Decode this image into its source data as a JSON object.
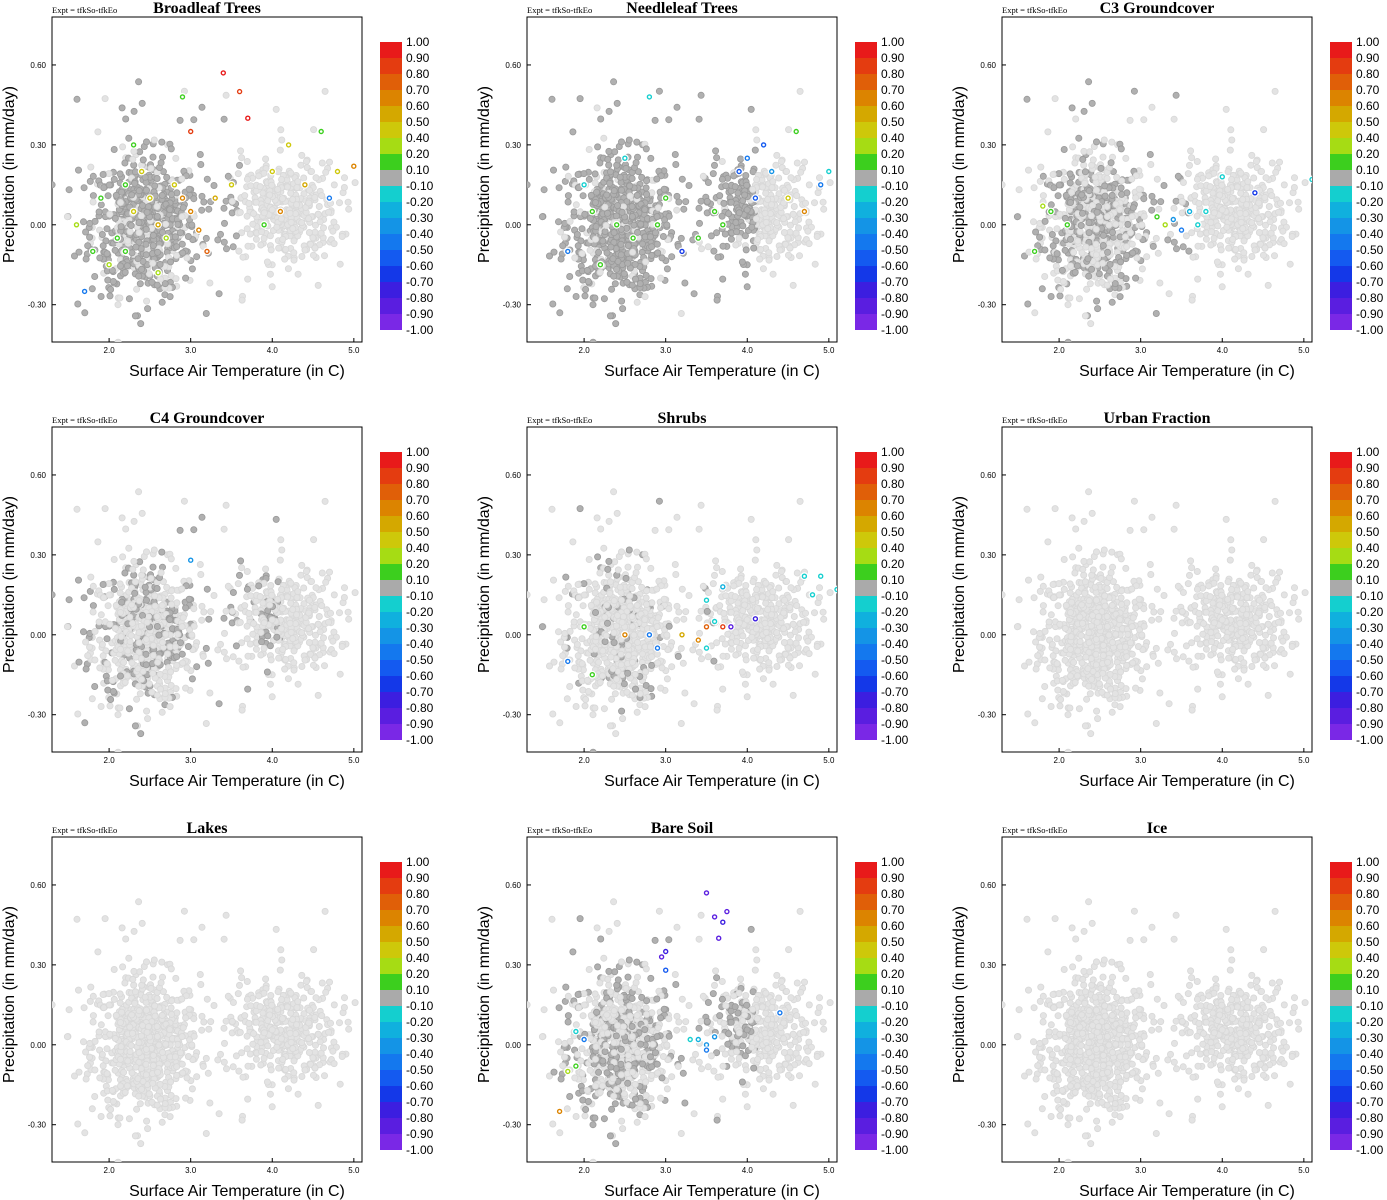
{
  "figure": {
    "expt_label": "Expt = tfkSo-tfkEo",
    "point_colors": {
      "background": "#e3e3e3",
      "low_correlation": "#b0b0b0",
      "outline": "#999999"
    }
  },
  "colorbar": {
    "labels": [
      "1.00",
      "0.90",
      "0.80",
      "0.70",
      "0.60",
      "0.50",
      "0.40",
      "0.20",
      "0.10",
      "-0.10",
      "-0.20",
      "-0.30",
      "-0.40",
      "-0.50",
      "-0.60",
      "-0.70",
      "-0.80",
      "-0.90",
      "-1.00"
    ],
    "colors": [
      "#e81a1a",
      "#e43c10",
      "#e05f08",
      "#dc8400",
      "#d4a800",
      "#cec80a",
      "#a6dc14",
      "#3ccf1e",
      "#aaaaaa",
      "#14cfcf",
      "#10b0de",
      "#1494e6",
      "#1478ee",
      "#145af0",
      "#1438e8",
      "#3c1ee0",
      "#5a1ee0",
      "#7a28e6"
    ],
    "levels": [
      0.95,
      0.85,
      0.75,
      0.65,
      0.55,
      0.45,
      0.3,
      0.15,
      0.0,
      -0.15,
      -0.25,
      -0.35,
      -0.45,
      -0.55,
      -0.65,
      -0.75,
      -0.85,
      -0.95
    ]
  },
  "chart_data": [
    {
      "type": "scatter",
      "title": "Broadleaf Trees",
      "xlabel": "Surface Air Temperature (in C)",
      "ylabel": "Precipitation (in mm/day)",
      "xticks": [
        "2.0",
        "3.0",
        "4.0",
        "5.0"
      ],
      "yticks": [
        "0.60",
        "0.30",
        "0.00",
        "-0.30"
      ],
      "xlim": [
        1.3,
        5.1
      ],
      "ylim": [
        -0.44,
        0.78
      ],
      "colored_points": [
        {
          "x": 2.2,
          "y": 0.15,
          "c": 0.15
        },
        {
          "x": 2.3,
          "y": 0.05,
          "c": 0.4
        },
        {
          "x": 2.5,
          "y": 0.1,
          "c": 0.45
        },
        {
          "x": 2.1,
          "y": -0.05,
          "c": 0.15
        },
        {
          "x": 2.6,
          "y": 0.0,
          "c": 0.55
        },
        {
          "x": 2.9,
          "y": 0.1,
          "c": 0.6
        },
        {
          "x": 3.0,
          "y": 0.05,
          "c": 0.65
        },
        {
          "x": 3.1,
          "y": -0.02,
          "c": 0.6
        },
        {
          "x": 2.4,
          "y": 0.2,
          "c": 0.45
        },
        {
          "x": 2.8,
          "y": 0.15,
          "c": 0.45
        },
        {
          "x": 1.9,
          "y": 0.1,
          "c": 0.15
        },
        {
          "x": 2.0,
          "y": -0.15,
          "c": 0.3
        },
        {
          "x": 1.8,
          "y": -0.1,
          "c": 0.15
        },
        {
          "x": 2.7,
          "y": -0.05,
          "c": 0.3
        },
        {
          "x": 3.3,
          "y": 0.1,
          "c": 0.55
        },
        {
          "x": 3.5,
          "y": 0.15,
          "c": 0.4
        },
        {
          "x": 3.4,
          "y": 0.57,
          "c": 0.95
        },
        {
          "x": 3.6,
          "y": 0.5,
          "c": 0.85
        },
        {
          "x": 3.7,
          "y": 0.4,
          "c": 0.95
        },
        {
          "x": 3.0,
          "y": 0.35,
          "c": 0.85
        },
        {
          "x": 4.0,
          "y": 0.2,
          "c": 0.45
        },
        {
          "x": 4.2,
          "y": 0.3,
          "c": 0.45
        },
        {
          "x": 4.4,
          "y": 0.15,
          "c": 0.55
        },
        {
          "x": 4.6,
          "y": 0.35,
          "c": 0.15
        },
        {
          "x": 4.8,
          "y": 0.2,
          "c": 0.45
        },
        {
          "x": 5.0,
          "y": 0.22,
          "c": 0.65
        },
        {
          "x": 4.7,
          "y": 0.1,
          "c": -0.45
        },
        {
          "x": 1.7,
          "y": -0.25,
          "c": -0.45
        },
        {
          "x": 3.2,
          "y": -0.1,
          "c": 0.75
        },
        {
          "x": 2.3,
          "y": 0.3,
          "c": 0.15
        },
        {
          "x": 2.6,
          "y": -0.18,
          "c": 0.3
        },
        {
          "x": 1.6,
          "y": 0.0,
          "c": 0.3
        },
        {
          "x": 2.9,
          "y": 0.48,
          "c": 0.15
        },
        {
          "x": 3.9,
          "y": 0.0,
          "c": 0.15
        },
        {
          "x": 4.1,
          "y": 0.05,
          "c": 0.6
        },
        {
          "x": 2.2,
          "y": -0.1,
          "c": 0.15
        }
      ]
    },
    {
      "type": "scatter",
      "title": "Needleleaf Trees",
      "xlabel": "Surface Air Temperature (in C)",
      "ylabel": "Precipitation (in mm/day)",
      "xticks": [
        "2.0",
        "3.0",
        "4.0",
        "5.0"
      ],
      "yticks": [
        "0.60",
        "0.30",
        "0.00",
        "-0.30"
      ],
      "xlim": [
        1.3,
        5.1
      ],
      "ylim": [
        -0.44,
        0.78
      ],
      "colored_points": [
        {
          "x": 2.1,
          "y": 0.05,
          "c": 0.15
        },
        {
          "x": 2.4,
          "y": 0.0,
          "c": 0.15
        },
        {
          "x": 2.6,
          "y": -0.05,
          "c": 0.15
        },
        {
          "x": 2.9,
          "y": 0.0,
          "c": 0.15
        },
        {
          "x": 3.2,
          "y": -0.1,
          "c": -0.65
        },
        {
          "x": 3.4,
          "y": -0.05,
          "c": 0.15
        },
        {
          "x": 3.9,
          "y": 0.2,
          "c": -0.55
        },
        {
          "x": 4.0,
          "y": 0.25,
          "c": -0.45
        },
        {
          "x": 4.2,
          "y": 0.3,
          "c": -0.55
        },
        {
          "x": 4.3,
          "y": 0.2,
          "c": -0.35
        },
        {
          "x": 4.5,
          "y": 0.1,
          "c": 0.45
        },
        {
          "x": 4.7,
          "y": 0.05,
          "c": 0.6
        },
        {
          "x": 4.9,
          "y": 0.15,
          "c": -0.45
        },
        {
          "x": 5.0,
          "y": 0.2,
          "c": -0.15
        },
        {
          "x": 2.8,
          "y": 0.48,
          "c": -0.15
        },
        {
          "x": 2.0,
          "y": 0.15,
          "c": -0.15
        },
        {
          "x": 1.8,
          "y": -0.1,
          "c": -0.45
        },
        {
          "x": 2.2,
          "y": -0.15,
          "c": 0.15
        },
        {
          "x": 3.6,
          "y": 0.05,
          "c": 0.15
        },
        {
          "x": 4.6,
          "y": 0.35,
          "c": 0.15
        },
        {
          "x": 2.5,
          "y": 0.25,
          "c": -0.15
        },
        {
          "x": 3.0,
          "y": 0.1,
          "c": 0.15
        },
        {
          "x": 3.7,
          "y": 0.0,
          "c": 0.15
        },
        {
          "x": 4.1,
          "y": 0.1,
          "c": -0.55
        }
      ]
    },
    {
      "type": "scatter",
      "title": "C3 Groundcover",
      "xlabel": "Surface Air Temperature (in C)",
      "ylabel": "Precipitation (in mm/day)",
      "xticks": [
        "2.0",
        "3.0",
        "4.0",
        "5.0"
      ],
      "yticks": [
        "0.60",
        "0.30",
        "0.00",
        "-0.30"
      ],
      "xlim": [
        1.3,
        5.1
      ],
      "ylim": [
        -0.44,
        0.78
      ],
      "colored_points": [
        {
          "x": 1.8,
          "y": 0.07,
          "c": 0.3
        },
        {
          "x": 1.9,
          "y": 0.05,
          "c": 0.15
        },
        {
          "x": 2.1,
          "y": 0.0,
          "c": 0.15
        },
        {
          "x": 1.7,
          "y": -0.1,
          "c": 0.15
        },
        {
          "x": 3.2,
          "y": 0.03,
          "c": 0.15
        },
        {
          "x": 3.3,
          "y": 0.0,
          "c": 0.3
        },
        {
          "x": 3.4,
          "y": 0.02,
          "c": -0.35
        },
        {
          "x": 3.5,
          "y": -0.02,
          "c": -0.45
        },
        {
          "x": 3.6,
          "y": 0.05,
          "c": -0.25
        },
        {
          "x": 3.7,
          "y": 0.0,
          "c": -0.15
        },
        {
          "x": 3.8,
          "y": 0.05,
          "c": -0.15
        },
        {
          "x": 4.0,
          "y": 0.18,
          "c": -0.15
        },
        {
          "x": 4.4,
          "y": 0.12,
          "c": -0.65
        },
        {
          "x": 5.1,
          "y": 0.17,
          "c": -0.15
        }
      ]
    },
    {
      "type": "scatter",
      "title": "C4 Groundcover",
      "xlabel": "Surface Air Temperature (in C)",
      "ylabel": "Precipitation (in mm/day)",
      "xticks": [
        "2.0",
        "3.0",
        "4.0",
        "5.0"
      ],
      "yticks": [
        "0.60",
        "0.30",
        "0.00",
        "-0.30"
      ],
      "xlim": [
        1.3,
        5.1
      ],
      "ylim": [
        -0.44,
        0.78
      ],
      "colored_points": [
        {
          "x": 3.0,
          "y": 0.28,
          "c": -0.35
        }
      ]
    },
    {
      "type": "scatter",
      "title": "Shrubs",
      "xlabel": "Surface Air Temperature (in C)",
      "ylabel": "Precipitation (in mm/day)",
      "xticks": [
        "2.0",
        "3.0",
        "4.0",
        "5.0"
      ],
      "yticks": [
        "0.60",
        "0.30",
        "0.00",
        "-0.30"
      ],
      "xlim": [
        1.3,
        5.1
      ],
      "ylim": [
        -0.44,
        0.78
      ],
      "colored_points": [
        {
          "x": 2.0,
          "y": 0.03,
          "c": 0.15
        },
        {
          "x": 2.5,
          "y": 0.0,
          "c": 0.65
        },
        {
          "x": 2.8,
          "y": 0.0,
          "c": -0.45
        },
        {
          "x": 3.2,
          "y": 0.0,
          "c": 0.55
        },
        {
          "x": 3.4,
          "y": -0.02,
          "c": 0.65
        },
        {
          "x": 3.5,
          "y": 0.03,
          "c": 0.75
        },
        {
          "x": 3.6,
          "y": 0.05,
          "c": -0.15
        },
        {
          "x": 3.7,
          "y": 0.03,
          "c": 0.85
        },
        {
          "x": 3.8,
          "y": 0.03,
          "c": -0.85
        },
        {
          "x": 4.1,
          "y": 0.06,
          "c": -0.75
        },
        {
          "x": 3.5,
          "y": -0.05,
          "c": -0.15
        },
        {
          "x": 3.5,
          "y": 0.13,
          "c": -0.15
        },
        {
          "x": 3.7,
          "y": 0.18,
          "c": -0.25
        },
        {
          "x": 4.7,
          "y": 0.22,
          "c": -0.15
        },
        {
          "x": 4.9,
          "y": 0.22,
          "c": -0.15
        },
        {
          "x": 5.1,
          "y": 0.17,
          "c": -0.15
        },
        {
          "x": 2.1,
          "y": -0.15,
          "c": 0.15
        },
        {
          "x": 1.8,
          "y": -0.1,
          "c": -0.45
        },
        {
          "x": 2.9,
          "y": -0.05,
          "c": -0.45
        },
        {
          "x": 4.8,
          "y": 0.15,
          "c": -0.15
        }
      ]
    },
    {
      "type": "scatter",
      "title": "Urban Fraction",
      "xlabel": "Surface Air Temperature (in C)",
      "ylabel": "Precipitation (in mm/day)",
      "xticks": [
        "2.0",
        "3.0",
        "4.0",
        "5.0"
      ],
      "yticks": [
        "0.60",
        "0.30",
        "0.00",
        "-0.30"
      ],
      "xlim": [
        1.3,
        5.1
      ],
      "ylim": [
        -0.44,
        0.78
      ],
      "colored_points": []
    },
    {
      "type": "scatter",
      "title": "Lakes",
      "xlabel": "Surface Air Temperature (in C)",
      "ylabel": "Precipitation (in mm/day)",
      "xticks": [
        "2.0",
        "3.0",
        "4.0",
        "5.0"
      ],
      "yticks": [
        "0.60",
        "0.30",
        "0.00",
        "-0.30"
      ],
      "xlim": [
        1.3,
        5.1
      ],
      "ylim": [
        -0.44,
        0.78
      ],
      "colored_points": []
    },
    {
      "type": "scatter",
      "title": "Bare Soil",
      "xlabel": "Surface Air Temperature (in C)",
      "ylabel": "Precipitation (in mm/day)",
      "xticks": [
        "2.0",
        "3.0",
        "4.0",
        "5.0"
      ],
      "yticks": [
        "0.60",
        "0.30",
        "0.00",
        "-0.30"
      ],
      "xlim": [
        1.3,
        5.1
      ],
      "ylim": [
        -0.44,
        0.78
      ],
      "colored_points": [
        {
          "x": 3.5,
          "y": 0.57,
          "c": -0.85
        },
        {
          "x": 3.6,
          "y": 0.48,
          "c": -0.85
        },
        {
          "x": 3.7,
          "y": 0.46,
          "c": -0.75
        },
        {
          "x": 3.75,
          "y": 0.5,
          "c": -0.85
        },
        {
          "x": 3.65,
          "y": 0.4,
          "c": -0.85
        },
        {
          "x": 3.0,
          "y": 0.35,
          "c": -0.75
        },
        {
          "x": 2.95,
          "y": 0.33,
          "c": -0.85
        },
        {
          "x": 3.0,
          "y": 0.28,
          "c": -0.55
        },
        {
          "x": 4.4,
          "y": 0.12,
          "c": -0.45
        },
        {
          "x": 3.4,
          "y": 0.02,
          "c": -0.25
        },
        {
          "x": 3.5,
          "y": 0.0,
          "c": -0.35
        },
        {
          "x": 3.5,
          "y": -0.02,
          "c": -0.45
        },
        {
          "x": 3.3,
          "y": 0.02,
          "c": -0.15
        },
        {
          "x": 1.9,
          "y": -0.08,
          "c": 0.15
        },
        {
          "x": 1.8,
          "y": -0.1,
          "c": 0.3
        },
        {
          "x": 1.7,
          "y": -0.25,
          "c": 0.65
        },
        {
          "x": 2.0,
          "y": 0.02,
          "c": -0.45
        },
        {
          "x": 1.9,
          "y": 0.05,
          "c": -0.15
        },
        {
          "x": 3.6,
          "y": 0.03,
          "c": -0.35
        }
      ]
    },
    {
      "type": "scatter",
      "title": "Ice",
      "xlabel": "Surface Air Temperature (in C)",
      "ylabel": "Precipitation (in mm/day)",
      "xticks": [
        "2.0",
        "3.0",
        "4.0",
        "5.0"
      ],
      "yticks": [
        "0.60",
        "0.30",
        "0.00",
        "-0.30"
      ],
      "xlim": [
        1.3,
        5.1
      ],
      "ylim": [
        -0.44,
        0.78
      ],
      "colored_points": []
    }
  ]
}
